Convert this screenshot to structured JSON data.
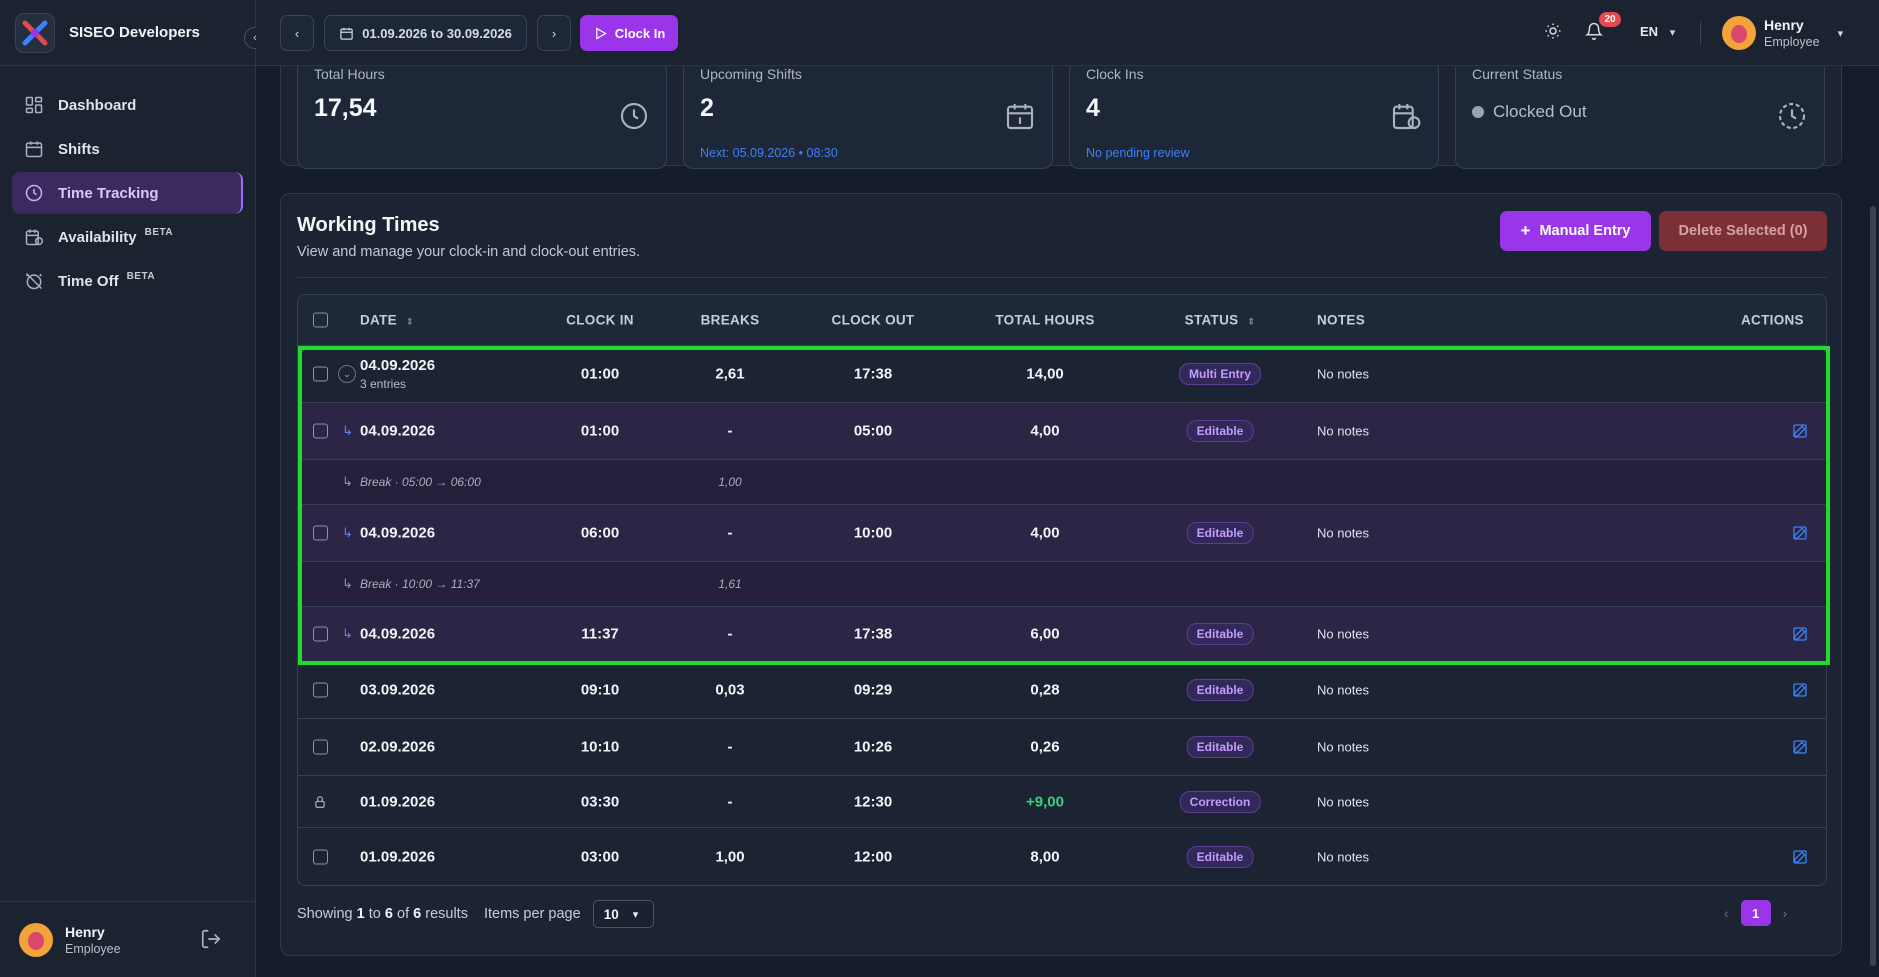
{
  "app": {
    "name": "SISEO Developers"
  },
  "sidebar": {
    "items": [
      {
        "label": "Dashboard",
        "icon": "dashboard-icon"
      },
      {
        "label": "Shifts",
        "icon": "calendar-icon"
      },
      {
        "label": "Time Tracking",
        "icon": "clock-icon",
        "active": true
      },
      {
        "label": "Availability",
        "icon": "calendar-clock-icon",
        "badge": "BETA"
      },
      {
        "label": "Time Off",
        "icon": "alarm-off-icon",
        "badge": "BETA"
      }
    ],
    "user": {
      "name": "Henry",
      "role": "Employee"
    }
  },
  "topbar": {
    "date_range": "01.09.2026 to 30.09.2026",
    "clock_in_label": "Clock In",
    "notification_count": "20",
    "language": "EN",
    "user": {
      "name": "Henry",
      "role": "Employee"
    }
  },
  "stats": [
    {
      "label": "Total Hours",
      "value": "17,54",
      "icon": "clock-icon"
    },
    {
      "label": "Upcoming Shifts",
      "value": "2",
      "sub": "Next: 05.09.2026 • 08:30",
      "icon": "calendar-icon"
    },
    {
      "label": "Clock Ins",
      "value": "4",
      "sub": "No pending review",
      "icon": "calendar-clock-icon"
    },
    {
      "label": "Current Status",
      "value": "Clocked Out",
      "icon": "history-icon"
    }
  ],
  "panel": {
    "title": "Working Times",
    "subtitle": "View and manage your clock-in and clock-out entries.",
    "manual_entry_label": "Manual Entry",
    "delete_label": "Delete Selected (0)"
  },
  "table": {
    "headers": {
      "date": "DATE",
      "clock_in": "CLOCK IN",
      "breaks": "BREAKS",
      "clock_out": "CLOCK OUT",
      "total_hours": "TOTAL HOURS",
      "status": "STATUS",
      "notes": "NOTES",
      "actions": "ACTIONS"
    },
    "rows": [
      {
        "date": "04.09.2026",
        "entries": "3 entries",
        "clock_in": "01:00",
        "breaks": "2,61",
        "clock_out": "17:38",
        "total": "14,00",
        "status": "Multi Entry",
        "notes": "No notes"
      },
      {
        "date": "04.09.2026",
        "clock_in": "01:00",
        "breaks": "-",
        "clock_out": "05:00",
        "total": "4,00",
        "status": "Editable",
        "notes": "No notes"
      },
      {
        "break": "Break · 05:00 → 06:00",
        "breaks": "1,00"
      },
      {
        "date": "04.09.2026",
        "clock_in": "06:00",
        "breaks": "-",
        "clock_out": "10:00",
        "total": "4,00",
        "status": "Editable",
        "notes": "No notes"
      },
      {
        "break": "Break · 10:00 → 11:37",
        "breaks": "1,61"
      },
      {
        "date": "04.09.2026",
        "clock_in": "11:37",
        "breaks": "-",
        "clock_out": "17:38",
        "total": "6,00",
        "status": "Editable",
        "notes": "No notes"
      },
      {
        "date": "03.09.2026",
        "clock_in": "09:10",
        "breaks": "0,03",
        "clock_out": "09:29",
        "total": "0,28",
        "status": "Editable",
        "notes": "No notes"
      },
      {
        "date": "02.09.2026",
        "clock_in": "10:10",
        "breaks": "-",
        "clock_out": "10:26",
        "total": "0,26",
        "status": "Editable",
        "notes": "No notes"
      },
      {
        "date": "01.09.2026",
        "clock_in": "03:30",
        "breaks": "-",
        "clock_out": "12:30",
        "total": "+9,00",
        "status": "Correction",
        "notes": "No notes"
      },
      {
        "date": "01.09.2026",
        "clock_in": "03:00",
        "breaks": "1,00",
        "clock_out": "12:00",
        "total": "8,00",
        "status": "Editable",
        "notes": "No notes"
      }
    ]
  },
  "pagination": {
    "showing": "Showing",
    "from": "1",
    "to_word": "to",
    "to": "6",
    "of_word": "of",
    "total": "6",
    "results": "results",
    "per_page_label": "Items per page",
    "per_page": "10",
    "current_page": "1"
  },
  "colors": {
    "accent": "#9b35ea",
    "highlight": "#1fdc2a",
    "danger": "#7a3035",
    "positive": "#3ad17c"
  }
}
